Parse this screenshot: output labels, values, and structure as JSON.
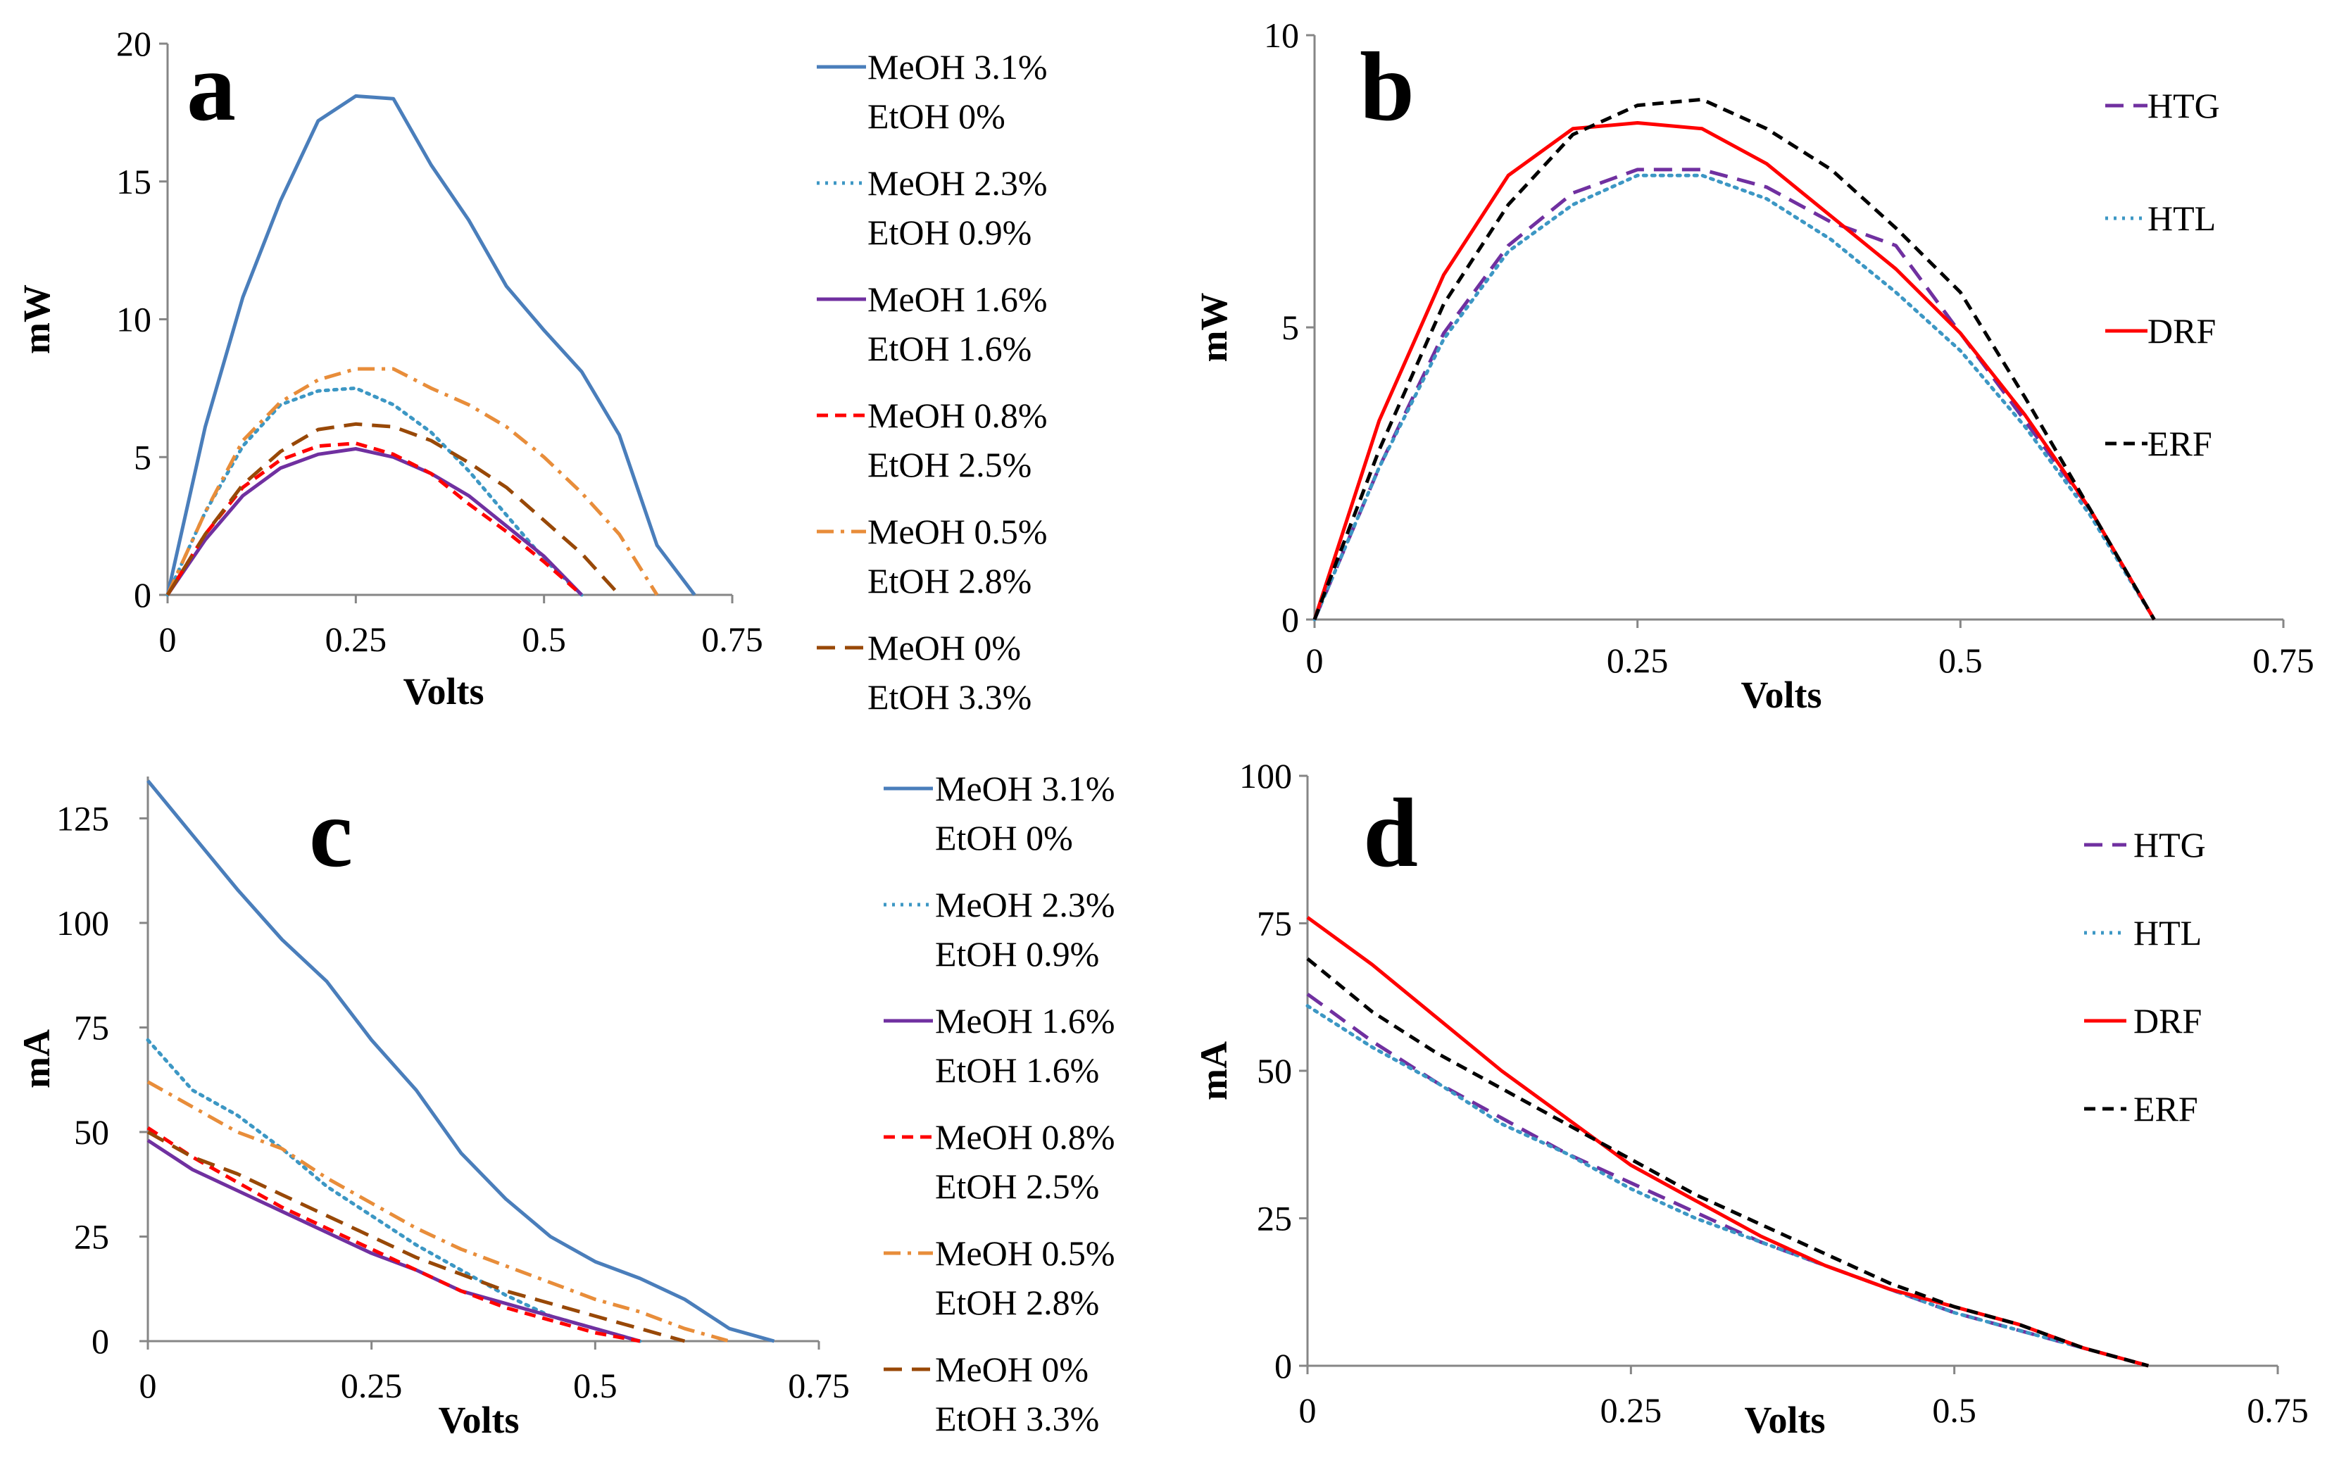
{
  "colors": {
    "meoh31": "#4a7ebb",
    "meoh23": "#3c97c4",
    "meoh16": "#7030a0",
    "meoh08": "#ff0000",
    "meoh05": "#e88d3a",
    "meoh0": "#984807",
    "HTG": "#7030a0",
    "HTL": "#3c97c4",
    "DRF": "#ff0000",
    "ERF": "#000000"
  },
  "chart_data": [
    {
      "type": "line",
      "panel_label": "a",
      "title": "",
      "xlabel": "Volts",
      "ylabel": "mW",
      "xlim": [
        0,
        0.75
      ],
      "ylim": [
        0,
        20
      ],
      "xticks": [
        "0",
        "0.25",
        "0.5",
        "0.75"
      ],
      "yticks": [
        "0",
        "5",
        "10",
        "15",
        "20"
      ],
      "legend_position": "right",
      "series": [
        {
          "id": "meoh31",
          "label_line1": "MeOH 3.1%",
          "label_line2": "EtOH 0%",
          "dash": "solid",
          "x": [
            0,
            0.05,
            0.1,
            0.15,
            0.2,
            0.25,
            0.3,
            0.35,
            0.4,
            0.45,
            0.5,
            0.55,
            0.6,
            0.65,
            0.7
          ],
          "y": [
            0,
            6.1,
            10.8,
            14.3,
            17.2,
            18.1,
            18.0,
            15.6,
            13.6,
            11.2,
            9.6,
            8.1,
            5.8,
            1.8,
            0
          ]
        },
        {
          "id": "meoh23",
          "label_line1": "MeOH 2.3%",
          "label_line2": "EtOH 0.9%",
          "dash": "dot",
          "x": [
            0,
            0.05,
            0.1,
            0.15,
            0.2,
            0.25,
            0.3,
            0.35,
            0.4,
            0.45,
            0.5,
            0.55
          ],
          "y": [
            0,
            3.0,
            5.4,
            6.9,
            7.4,
            7.5,
            6.9,
            5.9,
            4.5,
            2.9,
            1.3,
            0
          ]
        },
        {
          "id": "meoh16",
          "label_line1": "MeOH 1.6%",
          "label_line2": "EtOH 1.6%",
          "dash": "solid",
          "x": [
            0,
            0.05,
            0.1,
            0.15,
            0.2,
            0.25,
            0.3,
            0.35,
            0.4,
            0.45,
            0.5,
            0.55
          ],
          "y": [
            0,
            2.0,
            3.6,
            4.6,
            5.1,
            5.3,
            5.0,
            4.4,
            3.6,
            2.5,
            1.4,
            0
          ]
        },
        {
          "id": "meoh08",
          "label_line1": "MeOH 0.8%",
          "label_line2": "EtOH 2.5%",
          "dash": "dash",
          "x": [
            0,
            0.05,
            0.1,
            0.15,
            0.2,
            0.25,
            0.3,
            0.35,
            0.4,
            0.45,
            0.5,
            0.55
          ],
          "y": [
            0,
            2.2,
            3.9,
            4.9,
            5.4,
            5.5,
            5.1,
            4.4,
            3.3,
            2.3,
            1.2,
            0
          ]
        },
        {
          "id": "meoh05",
          "label_line1": "MeOH 0.5%",
          "label_line2": "EtOH 2.8%",
          "dash": "dashdot",
          "x": [
            0,
            0.05,
            0.1,
            0.15,
            0.2,
            0.25,
            0.3,
            0.35,
            0.4,
            0.45,
            0.5,
            0.55,
            0.6,
            0.65
          ],
          "y": [
            0,
            3.0,
            5.6,
            7.0,
            7.8,
            8.2,
            8.2,
            7.5,
            6.9,
            6.1,
            5.0,
            3.7,
            2.2,
            0
          ]
        },
        {
          "id": "meoh0",
          "label_line1": "MeOH 0%",
          "label_line2": "EtOH 3.3%",
          "dash": "longdash",
          "x": [
            0,
            0.05,
            0.1,
            0.15,
            0.2,
            0.25,
            0.3,
            0.35,
            0.4,
            0.45,
            0.5,
            0.55,
            0.6
          ],
          "y": [
            0,
            2.2,
            4.0,
            5.2,
            6.0,
            6.2,
            6.1,
            5.6,
            4.8,
            3.9,
            2.7,
            1.5,
            0
          ]
        }
      ]
    },
    {
      "type": "line",
      "panel_label": "b",
      "title": "",
      "xlabel": "Volts",
      "ylabel": "mW",
      "xlim": [
        0,
        0.75
      ],
      "ylim": [
        0,
        10
      ],
      "xticks": [
        "0",
        "0.25",
        "0.5",
        "0.75"
      ],
      "yticks": [
        "0",
        "5",
        "10"
      ],
      "legend_position": "right",
      "series": [
        {
          "id": "HTG",
          "label_line1": "HTG",
          "label_line2": "",
          "dash": "longdash",
          "x": [
            0,
            0.05,
            0.1,
            0.15,
            0.2,
            0.25,
            0.3,
            0.35,
            0.4,
            0.45,
            0.5,
            0.55,
            0.6,
            0.65
          ],
          "y": [
            0,
            2.6,
            4.9,
            6.4,
            7.3,
            7.7,
            7.7,
            7.4,
            6.8,
            6.4,
            4.9,
            3.4,
            1.9,
            0
          ]
        },
        {
          "id": "HTL",
          "label_line1": "HTL",
          "label_line2": "",
          "dash": "dot",
          "x": [
            0,
            0.05,
            0.1,
            0.15,
            0.2,
            0.25,
            0.3,
            0.35,
            0.4,
            0.45,
            0.5,
            0.55,
            0.6,
            0.65
          ],
          "y": [
            0,
            2.6,
            4.8,
            6.3,
            7.1,
            7.6,
            7.6,
            7.2,
            6.5,
            5.6,
            4.6,
            3.3,
            1.8,
            0
          ]
        },
        {
          "id": "DRF",
          "label_line1": "DRF",
          "label_line2": "",
          "dash": "solid",
          "x": [
            0,
            0.05,
            0.1,
            0.15,
            0.2,
            0.25,
            0.3,
            0.35,
            0.4,
            0.45,
            0.5,
            0.55,
            0.6,
            0.65
          ],
          "y": [
            0,
            3.4,
            5.9,
            7.6,
            8.4,
            8.5,
            8.4,
            7.8,
            6.9,
            6.0,
            4.9,
            3.5,
            1.9,
            0
          ]
        },
        {
          "id": "ERF",
          "label_line1": "ERF",
          "label_line2": "",
          "dash": "dash",
          "x": [
            0,
            0.05,
            0.1,
            0.15,
            0.2,
            0.25,
            0.3,
            0.35,
            0.4,
            0.45,
            0.5,
            0.55,
            0.6,
            0.65
          ],
          "y": [
            0,
            2.9,
            5.4,
            7.1,
            8.3,
            8.8,
            8.9,
            8.4,
            7.7,
            6.7,
            5.6,
            3.8,
            1.9,
            0
          ]
        }
      ]
    },
    {
      "type": "line",
      "panel_label": "c",
      "title": "",
      "xlabel": "Volts",
      "ylabel": "mA",
      "xlim": [
        0,
        0.75
      ],
      "ylim": [
        0,
        135
      ],
      "xticks": [
        "0",
        "0.25",
        "0.5",
        "0.75"
      ],
      "yticks": [
        "0",
        "25",
        "50",
        "75",
        "100",
        "125"
      ],
      "legend_position": "right",
      "series": [
        {
          "id": "meoh31",
          "label_line1": "MeOH 3.1%",
          "label_line2": "EtOH 0%",
          "dash": "solid",
          "x": [
            0,
            0.05,
            0.1,
            0.15,
            0.2,
            0.25,
            0.3,
            0.35,
            0.4,
            0.45,
            0.5,
            0.55,
            0.6,
            0.65,
            0.7
          ],
          "y": [
            134,
            121,
            108,
            96,
            86,
            72,
            60,
            45,
            34,
            25,
            19,
            15,
            10,
            3,
            0
          ]
        },
        {
          "id": "meoh23",
          "label_line1": "MeOH 2.3%",
          "label_line2": "EtOH 0.9%",
          "dash": "dot",
          "x": [
            0,
            0.05,
            0.1,
            0.15,
            0.2,
            0.25,
            0.3,
            0.35,
            0.4,
            0.45,
            0.5,
            0.55
          ],
          "y": [
            72,
            60,
            54,
            46,
            37,
            30,
            23,
            17,
            11,
            6,
            3,
            0
          ]
        },
        {
          "id": "meoh16",
          "label_line1": "MeOH 1.6%",
          "label_line2": "EtOH 1.6%",
          "dash": "solid",
          "x": [
            0,
            0.05,
            0.1,
            0.15,
            0.2,
            0.25,
            0.3,
            0.35,
            0.4,
            0.45,
            0.5,
            0.55
          ],
          "y": [
            48,
            41,
            36,
            31,
            26,
            21,
            17,
            12,
            9,
            6,
            3,
            0
          ]
        },
        {
          "id": "meoh08",
          "label_line1": "MeOH 0.8%",
          "label_line2": "EtOH 2.5%",
          "dash": "dash",
          "x": [
            0,
            0.05,
            0.1,
            0.15,
            0.2,
            0.25,
            0.3,
            0.35,
            0.4,
            0.45,
            0.5,
            0.55
          ],
          "y": [
            51,
            44,
            38,
            32,
            27,
            22,
            17,
            12,
            8,
            5,
            2,
            0
          ]
        },
        {
          "id": "meoh05",
          "label_line1": "MeOH 0.5%",
          "label_line2": "EtOH 2.8%",
          "dash": "dashdot",
          "x": [
            0,
            0.05,
            0.1,
            0.15,
            0.2,
            0.25,
            0.3,
            0.35,
            0.4,
            0.45,
            0.5,
            0.55,
            0.6,
            0.65
          ],
          "y": [
            62,
            56,
            50,
            46,
            39,
            33,
            27,
            22,
            18,
            14,
            10,
            7,
            3,
            0
          ]
        },
        {
          "id": "meoh0",
          "label_line1": "MeOH 0%",
          "label_line2": "EtOH 3.3%",
          "dash": "longdash",
          "x": [
            0,
            0.05,
            0.1,
            0.15,
            0.2,
            0.25,
            0.3,
            0.35,
            0.4,
            0.45,
            0.5,
            0.55,
            0.6
          ],
          "y": [
            50,
            44,
            40,
            35,
            30,
            25,
            20,
            16,
            12,
            9,
            6,
            3,
            0
          ]
        }
      ]
    },
    {
      "type": "line",
      "panel_label": "d",
      "title": "",
      "xlabel": "Volts",
      "ylabel": "mA",
      "xlim": [
        0,
        0.75
      ],
      "ylim": [
        0,
        100
      ],
      "xticks": [
        "0",
        "0.25",
        "0.5",
        "0.75"
      ],
      "yticks": [
        "0",
        "25",
        "50",
        "75",
        "100"
      ],
      "legend_position": "right",
      "series": [
        {
          "id": "HTG",
          "label_line1": "HTG",
          "label_line2": "",
          "dash": "longdash",
          "x": [
            0,
            0.05,
            0.1,
            0.15,
            0.2,
            0.25,
            0.3,
            0.35,
            0.4,
            0.45,
            0.5,
            0.55,
            0.6,
            0.65
          ],
          "y": [
            63,
            55,
            48,
            42,
            36,
            31,
            26,
            21,
            17,
            13,
            9,
            6,
            3,
            0
          ]
        },
        {
          "id": "HTL",
          "label_line1": "HTL",
          "label_line2": "",
          "dash": "dot",
          "x": [
            0,
            0.05,
            0.1,
            0.15,
            0.2,
            0.25,
            0.3,
            0.35,
            0.4,
            0.45,
            0.5,
            0.55,
            0.6,
            0.65
          ],
          "y": [
            61,
            54,
            48,
            41,
            36,
            30,
            25,
            21,
            17,
            13,
            9,
            6,
            3,
            0
          ]
        },
        {
          "id": "DRF",
          "label_line1": "DRF",
          "label_line2": "",
          "dash": "solid",
          "x": [
            0,
            0.05,
            0.1,
            0.15,
            0.2,
            0.25,
            0.3,
            0.35,
            0.4,
            0.45,
            0.5,
            0.55,
            0.6,
            0.65
          ],
          "y": [
            76,
            68,
            59,
            50,
            42,
            34,
            28,
            22,
            17,
            13,
            10,
            7,
            3,
            0
          ]
        },
        {
          "id": "ERF",
          "label_line1": "ERF",
          "label_line2": "",
          "dash": "dash",
          "x": [
            0,
            0.05,
            0.1,
            0.15,
            0.2,
            0.25,
            0.3,
            0.35,
            0.4,
            0.45,
            0.5,
            0.55,
            0.6,
            0.65
          ],
          "y": [
            69,
            60,
            53,
            47,
            41,
            35,
            29,
            24,
            19,
            14,
            10,
            7,
            3,
            0
          ]
        }
      ]
    }
  ]
}
